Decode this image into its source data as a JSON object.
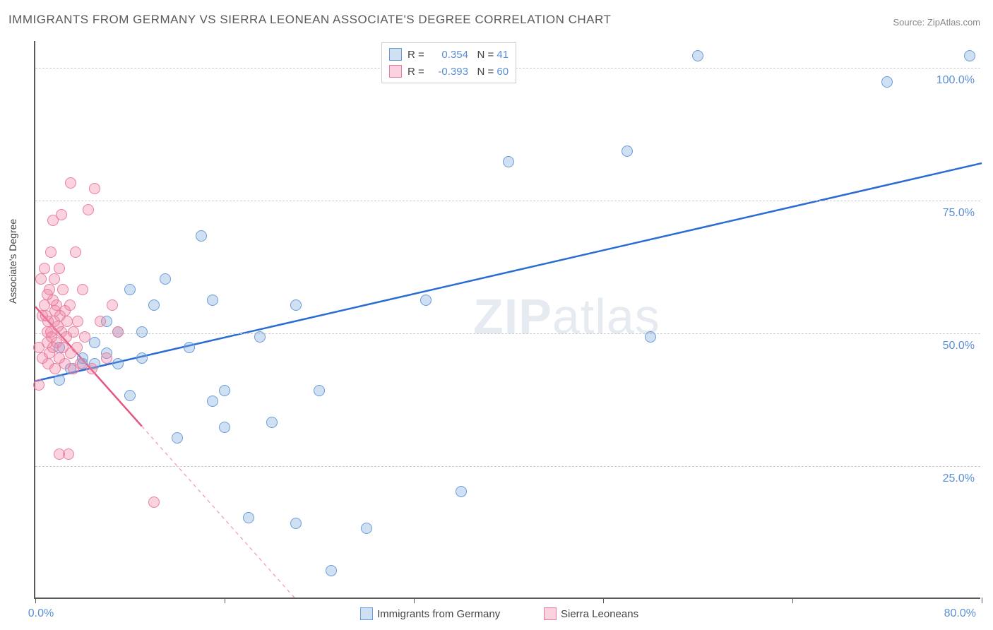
{
  "title": "IMMIGRANTS FROM GERMANY VS SIERRA LEONEAN ASSOCIATE'S DEGREE CORRELATION CHART",
  "source_label": "Source: ZipAtlas.com",
  "y_axis_label": "Associate's Degree",
  "watermark_bold": "ZIP",
  "watermark_rest": "atlas",
  "chart": {
    "type": "scatter",
    "xlim": [
      0,
      80
    ],
    "ylim": [
      0,
      105
    ],
    "x_ticks": [
      0,
      16,
      32,
      48,
      64,
      80
    ],
    "x_tick_labels": {
      "0": "0.0%",
      "80": "80.0%"
    },
    "y_ticks": [
      25,
      50,
      75,
      100
    ],
    "y_tick_labels": {
      "25": "25.0%",
      "50": "50.0%",
      "75": "75.0%",
      "100": "100.0%"
    },
    "grid_color": "#cccccc",
    "background_color": "#ffffff",
    "marker_radius": 8,
    "series": [
      {
        "name": "Immigrants from Germany",
        "fill": "rgba(120,165,220,0.35)",
        "stroke": "#6a9bd8",
        "line_color": "#2a6bd4",
        "line_width": 2.5,
        "line_dash": "none",
        "R": "0.354",
        "N": "41",
        "regression": {
          "x1": 0,
          "y1": 41,
          "x2": 80,
          "y2": 82
        },
        "points": [
          [
            2,
            41
          ],
          [
            2,
            47
          ],
          [
            3,
            43
          ],
          [
            4,
            44
          ],
          [
            4,
            45
          ],
          [
            5,
            48
          ],
          [
            5,
            44
          ],
          [
            6,
            46
          ],
          [
            6,
            52
          ],
          [
            7,
            44
          ],
          [
            7,
            50
          ],
          [
            8,
            38
          ],
          [
            8,
            58
          ],
          [
            9,
            50
          ],
          [
            9,
            45
          ],
          [
            10,
            55
          ],
          [
            11,
            60
          ],
          [
            12,
            30
          ],
          [
            13,
            47
          ],
          [
            14,
            68
          ],
          [
            15,
            56
          ],
          [
            15,
            37
          ],
          [
            16,
            39
          ],
          [
            16,
            32
          ],
          [
            18,
            15
          ],
          [
            19,
            49
          ],
          [
            20,
            33
          ],
          [
            22,
            55
          ],
          [
            22,
            14
          ],
          [
            24,
            39
          ],
          [
            25,
            5
          ],
          [
            28,
            13
          ],
          [
            32,
            102
          ],
          [
            33,
            56
          ],
          [
            36,
            20
          ],
          [
            40,
            82
          ],
          [
            50,
            84
          ],
          [
            52,
            49
          ],
          [
            56,
            102
          ],
          [
            72,
            97
          ],
          [
            79,
            102
          ]
        ]
      },
      {
        "name": "Sierra Leoneans",
        "fill": "rgba(240,130,160,0.35)",
        "stroke": "#e87fa3",
        "line_color": "#e4557f",
        "line_width": 2.5,
        "line_dash": "4 4",
        "R": "-0.393",
        "N": "60",
        "regression": {
          "x1": 0,
          "y1": 55,
          "x2": 22,
          "y2": 0
        },
        "regression_solid_until_x": 9,
        "points": [
          [
            0.3,
            40
          ],
          [
            0.3,
            47
          ],
          [
            0.5,
            60
          ],
          [
            0.6,
            53
          ],
          [
            0.6,
            45
          ],
          [
            0.8,
            55
          ],
          [
            0.8,
            62
          ],
          [
            0.9,
            53
          ],
          [
            1.0,
            50
          ],
          [
            1.0,
            48
          ],
          [
            1.0,
            57
          ],
          [
            1.1,
            44
          ],
          [
            1.1,
            52
          ],
          [
            1.2,
            58
          ],
          [
            1.2,
            46
          ],
          [
            1.3,
            50
          ],
          [
            1.3,
            65
          ],
          [
            1.4,
            49
          ],
          [
            1.5,
            71
          ],
          [
            1.5,
            56
          ],
          [
            1.5,
            47
          ],
          [
            1.6,
            60
          ],
          [
            1.6,
            52
          ],
          [
            1.7,
            54
          ],
          [
            1.7,
            43
          ],
          [
            1.8,
            48
          ],
          [
            1.8,
            55
          ],
          [
            1.9,
            51
          ],
          [
            2.0,
            62
          ],
          [
            2.0,
            45
          ],
          [
            2.0,
            27
          ],
          [
            2.1,
            53
          ],
          [
            2.2,
            72
          ],
          [
            2.2,
            50
          ],
          [
            2.3,
            47
          ],
          [
            2.3,
            58
          ],
          [
            2.5,
            44
          ],
          [
            2.5,
            54
          ],
          [
            2.6,
            49
          ],
          [
            2.7,
            52
          ],
          [
            2.8,
            27
          ],
          [
            2.9,
            55
          ],
          [
            3.0,
            46
          ],
          [
            3.0,
            78
          ],
          [
            3.2,
            50
          ],
          [
            3.2,
            43
          ],
          [
            3.4,
            65
          ],
          [
            3.5,
            47
          ],
          [
            3.6,
            52
          ],
          [
            3.8,
            44
          ],
          [
            4.0,
            58
          ],
          [
            4.2,
            49
          ],
          [
            4.5,
            73
          ],
          [
            4.8,
            43
          ],
          [
            5.0,
            77
          ],
          [
            5.5,
            52
          ],
          [
            6.0,
            45
          ],
          [
            6.5,
            55
          ],
          [
            7.0,
            50
          ],
          [
            10,
            18
          ]
        ]
      }
    ]
  },
  "legend_top": {
    "r_label": "R",
    "n_label": "N",
    "eq": "="
  },
  "legend_bottom": [
    {
      "label": "Immigrants from Germany",
      "fill": "rgba(120,165,220,0.35)",
      "stroke": "#6a9bd8"
    },
    {
      "label": "Sierra Leoneans",
      "fill": "rgba(240,130,160,0.35)",
      "stroke": "#e87fa3"
    }
  ]
}
